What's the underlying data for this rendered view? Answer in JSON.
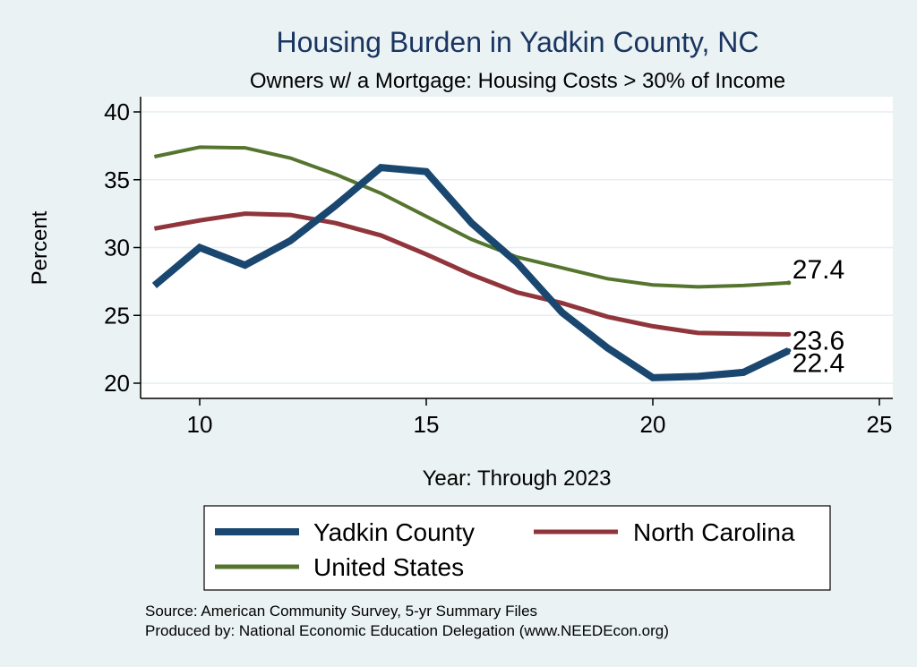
{
  "chart_data": {
    "type": "line",
    "title": "Housing Burden in Yadkin County, NC",
    "subtitle": "Owners w/ a Mortgage: Housing Costs > 30% of Income",
    "xlabel": "Year: Through 2023",
    "ylabel": "Percent",
    "xlim": [
      8.7,
      25
    ],
    "ylim": [
      19.3,
      40.2
    ],
    "x_ticks": [
      10,
      15,
      20,
      25
    ],
    "y_ticks": [
      20,
      25,
      30,
      35,
      40
    ],
    "x_tick_labels": [
      "10",
      "15",
      "20",
      "25"
    ],
    "y_tick_labels": [
      "20",
      "25",
      "30",
      "35",
      "40"
    ],
    "grid": true,
    "legend_position": "bottom",
    "x": [
      9,
      10,
      11,
      12,
      13,
      14,
      15,
      16,
      17,
      18,
      19,
      20,
      21,
      22,
      23
    ],
    "series": [
      {
        "name": "Yadkin County",
        "color": "#1a476f",
        "values": [
          27.2,
          30.0,
          28.7,
          30.5,
          33.1,
          35.9,
          35.6,
          31.8,
          28.9,
          25.2,
          22.6,
          20.4,
          20.5,
          20.8,
          22.4
        ],
        "end_label": "22.4"
      },
      {
        "name": "North Carolina",
        "color": "#90353b",
        "values": [
          31.4,
          32.0,
          32.5,
          32.4,
          31.8,
          30.9,
          29.5,
          28.0,
          26.7,
          25.9,
          24.9,
          24.2,
          23.7,
          23.65,
          23.6
        ],
        "end_label": "23.6"
      },
      {
        "name": "United States",
        "color": "#55752f",
        "values": [
          36.7,
          37.4,
          37.35,
          36.6,
          35.4,
          34.0,
          32.3,
          30.6,
          29.3,
          28.5,
          27.7,
          27.25,
          27.1,
          27.2,
          27.4
        ],
        "end_label": "27.4"
      }
    ],
    "notes": [
      "Source: American Community Survey, 5-yr Summary Files",
      "Produced by: National Economic Education Delegation (www.NEEDEcon.org)"
    ]
  }
}
